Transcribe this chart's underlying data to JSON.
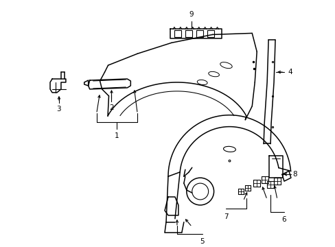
{
  "background_color": "#ffffff",
  "line_color": "#000000",
  "fig_width": 4.89,
  "fig_height": 3.6,
  "dpi": 100,
  "lw": 1.1
}
